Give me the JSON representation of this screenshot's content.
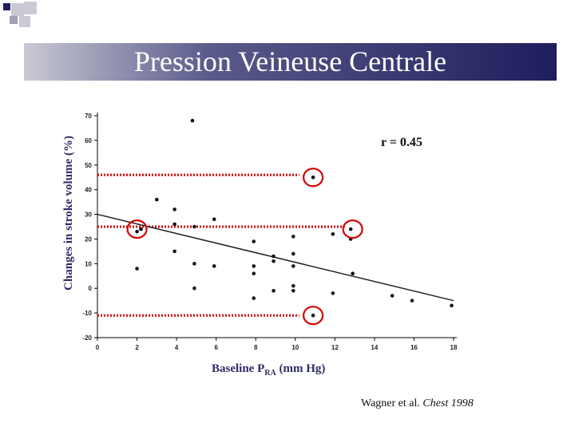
{
  "slide": {
    "title": "Pression Veineuse Centrale",
    "citation_authors": "Wagner et al.",
    "citation_journal": "Chest 1998",
    "colors": {
      "title_bar_dark": "#1e1e5e",
      "title_bar_light": "#c9c9d6",
      "highlight": "#d40000",
      "label": "#2d2d66"
    }
  },
  "chart_data": {
    "type": "scatter",
    "ylabel": "Changes in stroke volume (%)",
    "xlabel_main": "Baseline P",
    "xlabel_sub": "RA",
    "xlabel_unit": "(mm Hg)",
    "annotation": "r = 0.45",
    "xlim": [
      0,
      18
    ],
    "ylim": [
      -20,
      70
    ],
    "xticks": [
      0,
      2,
      4,
      6,
      8,
      10,
      12,
      14,
      16,
      18
    ],
    "yticks": [
      -20,
      -10,
      0,
      10,
      20,
      30,
      40,
      50,
      60,
      70
    ],
    "points": [
      {
        "x": 2,
        "y": 8
      },
      {
        "x": 2,
        "y": 23
      },
      {
        "x": 2.2,
        "y": 24
      },
      {
        "x": 3,
        "y": 36
      },
      {
        "x": 3.9,
        "y": 32
      },
      {
        "x": 3.9,
        "y": 26
      },
      {
        "x": 3.9,
        "y": 15
      },
      {
        "x": 4.8,
        "y": 68
      },
      {
        "x": 4.9,
        "y": 25
      },
      {
        "x": 4.9,
        "y": 10
      },
      {
        "x": 4.9,
        "y": 0
      },
      {
        "x": 5.9,
        "y": 28
      },
      {
        "x": 5.9,
        "y": 9
      },
      {
        "x": 7.9,
        "y": 19
      },
      {
        "x": 7.9,
        "y": 9
      },
      {
        "x": 7.9,
        "y": 6
      },
      {
        "x": 7.9,
        "y": -4
      },
      {
        "x": 8.9,
        "y": 13
      },
      {
        "x": 8.9,
        "y": 11
      },
      {
        "x": 8.9,
        "y": -1
      },
      {
        "x": 9.9,
        "y": 21
      },
      {
        "x": 9.9,
        "y": 14
      },
      {
        "x": 9.9,
        "y": 9
      },
      {
        "x": 9.9,
        "y": 1
      },
      {
        "x": 9.9,
        "y": -1
      },
      {
        "x": 10.9,
        "y": 45
      },
      {
        "x": 10.9,
        "y": -11
      },
      {
        "x": 11.9,
        "y": 22
      },
      {
        "x": 11.9,
        "y": -2
      },
      {
        "x": 12.8,
        "y": 24
      },
      {
        "x": 12.8,
        "y": 20
      },
      {
        "x": 12.9,
        "y": 6
      },
      {
        "x": 14.9,
        "y": -3
      },
      {
        "x": 15.9,
        "y": -5
      },
      {
        "x": 17.9,
        "y": -7
      }
    ],
    "regression": {
      "x": [
        0,
        18
      ],
      "y": [
        30,
        -5
      ]
    },
    "highlights": [
      {
        "x": 2.0,
        "y": 24
      },
      {
        "x": 10.9,
        "y": 45
      },
      {
        "x": 12.9,
        "y": 24
      },
      {
        "x": 10.9,
        "y": -11
      }
    ],
    "reference_lines": [
      {
        "y": 46,
        "x_end": 10.2
      },
      {
        "y": 25,
        "x_end": 12.5
      },
      {
        "y": -11,
        "x_end": 10.2
      }
    ]
  }
}
